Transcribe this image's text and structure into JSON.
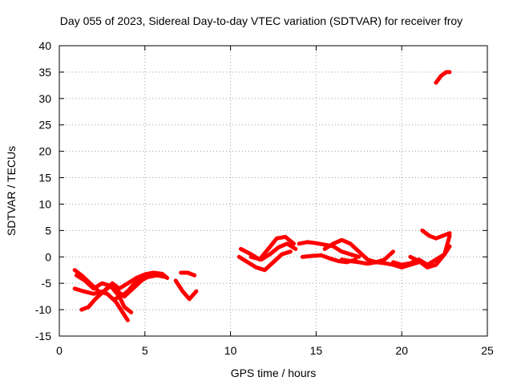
{
  "chart_data": {
    "type": "scatter",
    "title": "Day 055 of 2023, Sidereal Day-to-day VTEC variation (SDTVAR) for receiver froy",
    "xlabel": "GPS time / hours",
    "ylabel": "SDTVAR / TECUs",
    "xlim": [
      0,
      25
    ],
    "ylim": [
      -15,
      40
    ],
    "xticks": [
      "0",
      "5",
      "10",
      "15",
      "20",
      "25"
    ],
    "yticks": [
      "-15",
      "-10",
      "-5",
      "0",
      "5",
      "10",
      "15",
      "20",
      "25",
      "30",
      "35",
      "40"
    ],
    "grid": true,
    "legend": false,
    "color": "#ff0000",
    "series": [
      {
        "x": [
          0.9,
          1.3,
          1.8,
          2.3,
          2.8,
          3.3,
          3.7,
          4.0
        ],
        "y": [
          -2.5,
          -3.5,
          -5.0,
          -6.5,
          -7.0,
          -8.5,
          -10.5,
          -12.0
        ]
      },
      {
        "x": [
          1.0,
          1.5,
          2.0,
          2.5,
          3.0,
          3.5,
          3.8,
          4.2
        ],
        "y": [
          -3.5,
          -4.5,
          -6.0,
          -5.0,
          -5.5,
          -7.5,
          -9.5,
          -10.5
        ]
      },
      {
        "x": [
          0.9,
          1.4,
          2.0,
          2.6,
          3.1,
          3.5,
          4.0,
          4.5,
          5.0,
          5.5,
          6.0,
          6.3
        ],
        "y": [
          -6.0,
          -6.5,
          -7.0,
          -6.5,
          -5.0,
          -6.0,
          -5.0,
          -4.0,
          -3.3,
          -3.0,
          -3.2,
          -4.0
        ]
      },
      {
        "x": [
          1.3,
          1.7,
          2.1,
          2.6,
          3.0,
          3.4,
          3.8,
          4.3,
          4.8,
          5.3
        ],
        "y": [
          -10.0,
          -9.5,
          -8.0,
          -6.5,
          -5.5,
          -6.5,
          -7.5,
          -6.0,
          -4.5,
          -3.5
        ]
      },
      {
        "x": [
          3.2,
          3.6,
          4.0,
          4.4,
          4.8,
          5.2,
          5.7,
          6.2
        ],
        "y": [
          -8.0,
          -7.5,
          -6.5,
          -5.0,
          -4.2,
          -3.8,
          -3.5,
          -3.8
        ]
      },
      {
        "x": [
          6.8,
          7.2,
          7.6,
          8.0
        ],
        "y": [
          -4.5,
          -6.5,
          -8.0,
          -6.5
        ]
      },
      {
        "x": [
          7.1,
          7.5,
          7.9
        ],
        "y": [
          -3.0,
          -3.0,
          -3.5
        ]
      },
      {
        "x": [
          10.5,
          11.0,
          11.5,
          12.0,
          12.5,
          13.0,
          13.5
        ],
        "y": [
          0.0,
          -1.0,
          -2.0,
          -2.5,
          -1.0,
          0.5,
          1.0
        ]
      },
      {
        "x": [
          10.6,
          11.2,
          11.7,
          12.2,
          12.7,
          13.2,
          13.7
        ],
        "y": [
          1.5,
          0.5,
          -0.5,
          1.5,
          3.5,
          3.8,
          2.5
        ]
      },
      {
        "x": [
          11.2,
          11.8,
          12.3,
          12.8,
          13.3,
          13.8
        ],
        "y": [
          0.0,
          -0.5,
          0.5,
          1.8,
          2.5,
          1.5
        ]
      },
      {
        "x": [
          14.0,
          14.5,
          15.0,
          15.5,
          16.0,
          16.5,
          17.0,
          17.5
        ],
        "y": [
          2.5,
          2.8,
          2.6,
          2.3,
          2.0,
          1.0,
          0.5,
          0.0
        ]
      },
      {
        "x": [
          14.2,
          14.8,
          15.3,
          15.8,
          16.3,
          16.8,
          17.3
        ],
        "y": [
          0.0,
          0.2,
          0.3,
          -0.3,
          -0.8,
          -1.0,
          -0.5
        ]
      },
      {
        "x": [
          15.5,
          16.0,
          16.5,
          17.0,
          17.5,
          18.0,
          18.5,
          19.0,
          19.5
        ],
        "y": [
          1.5,
          2.5,
          3.2,
          2.5,
          1.0,
          -0.5,
          -1.0,
          -0.5,
          1.0
        ]
      },
      {
        "x": [
          16.5,
          17.0,
          17.5,
          18.0,
          18.5,
          19.0,
          19.5,
          20.0,
          20.5,
          21.0
        ],
        "y": [
          -0.5,
          -0.8,
          -1.0,
          -1.3,
          -1.0,
          -1.2,
          -1.5,
          -2.0,
          -1.5,
          -1.0
        ]
      },
      {
        "x": [
          19.5,
          20.0,
          20.5,
          21.0,
          21.5,
          22.0,
          22.5,
          22.8
        ],
        "y": [
          -1.0,
          -1.5,
          -1.2,
          -0.5,
          -1.5,
          -0.5,
          0.5,
          2.0
        ]
      },
      {
        "x": [
          20.5,
          21.0,
          21.5,
          22.0,
          22.5,
          22.8
        ],
        "y": [
          0.0,
          -0.8,
          -2.0,
          -1.5,
          0.5,
          4.0
        ]
      },
      {
        "x": [
          21.2,
          21.6,
          22.0,
          22.4,
          22.8
        ],
        "y": [
          5.0,
          4.0,
          3.5,
          4.0,
          4.5
        ]
      },
      {
        "x": [
          22.0,
          22.3,
          22.6,
          22.8
        ],
        "y": [
          33.0,
          34.3,
          35.0,
          35.0
        ]
      }
    ]
  }
}
